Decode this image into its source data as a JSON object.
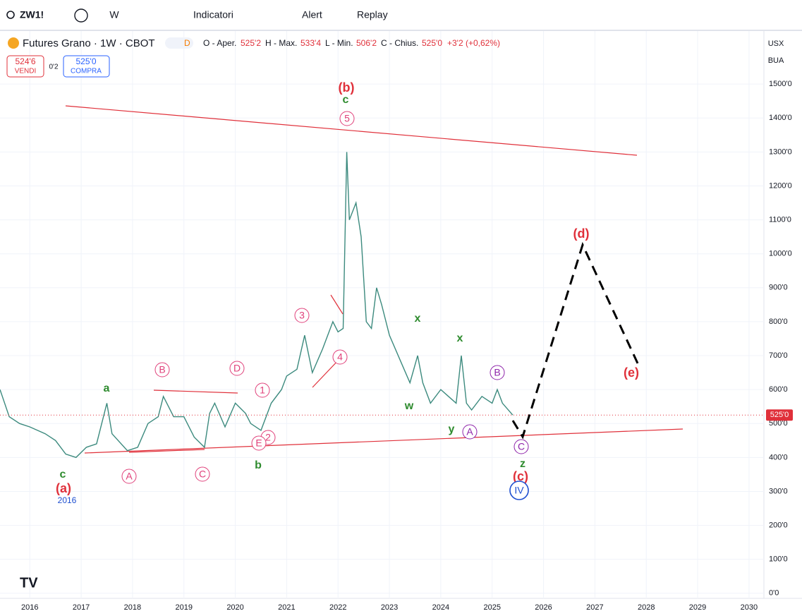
{
  "header": {
    "symbol": "ZW1!",
    "interval": "W",
    "indicators": "Indicatori",
    "alert": "Alert",
    "replay": "Replay"
  },
  "legend": {
    "name": "Futures Grano · 1W · CBOT",
    "badge": "D",
    "open_label": "O - Aper.",
    "open": "525'2",
    "high_label": "H - Max.",
    "high": "533'4",
    "low_label": "L - Min.",
    "low": "506'2",
    "close_label": "C - Chius.",
    "close": "525'0",
    "change": "+3'2 (+0,62%)",
    "sell": "524'6",
    "sell_label": "VENDI",
    "spread": "0'2",
    "buy": "525'0",
    "buy_label": "COMPRA",
    "currency": "USX",
    "unit": "BUA"
  },
  "chart_data": {
    "type": "line",
    "color": "#3c8a7e",
    "x": [
      2015.42,
      2015.6,
      2015.8,
      2016.0,
      2016.3,
      2016.5,
      2016.7,
      2016.9,
      2017.1,
      2017.3,
      2017.5,
      2017.6,
      2017.9,
      2018.1,
      2018.3,
      2018.5,
      2018.6,
      2018.8,
      2019.0,
      2019.2,
      2019.4,
      2019.5,
      2019.6,
      2019.8,
      2020.0,
      2020.2,
      2020.3,
      2020.5,
      2020.7,
      2020.9,
      2021.0,
      2021.2,
      2021.35,
      2021.5,
      2021.7,
      2021.9,
      2022.0,
      2022.1,
      2022.17,
      2022.22,
      2022.35,
      2022.45,
      2022.55,
      2022.65,
      2022.75,
      2022.85,
      2023.0,
      2023.2,
      2023.4,
      2023.55,
      2023.65,
      2023.8,
      2024.0,
      2024.15,
      2024.3,
      2024.4,
      2024.5,
      2024.6,
      2024.8,
      2025.0,
      2025.1,
      2025.2,
      2025.4
    ],
    "values": [
      600,
      520,
      500,
      490,
      470,
      450,
      410,
      400,
      430,
      440,
      560,
      470,
      420,
      430,
      500,
      520,
      580,
      520,
      520,
      460,
      430,
      530,
      560,
      490,
      560,
      530,
      500,
      480,
      560,
      600,
      640,
      660,
      760,
      650,
      720,
      800,
      770,
      780,
      1300,
      1100,
      1150,
      1050,
      800,
      780,
      900,
      850,
      760,
      690,
      620,
      700,
      620,
      560,
      600,
      580,
      560,
      700,
      560,
      540,
      580,
      560,
      600,
      560,
      525
    ],
    "xlim": [
      2015.42,
      2030.29
    ],
    "ylim": [
      -15,
      1598
    ],
    "xticks": [
      2016,
      2017,
      2018,
      2019,
      2020,
      2021,
      2022,
      2023,
      2024,
      2025,
      2026,
      2027,
      2028,
      2029,
      2030
    ],
    "yticks": [
      {
        "value": 0,
        "label": "0'0"
      },
      {
        "value": 100,
        "label": "100'0"
      },
      {
        "value": 200,
        "label": "200'0"
      },
      {
        "value": 300,
        "label": "300'0"
      },
      {
        "value": 400,
        "label": "400'0"
      },
      {
        "value": 500,
        "label": "500'0"
      },
      {
        "value": 600,
        "label": "600'0"
      },
      {
        "value": 700,
        "label": "700'0"
      },
      {
        "value": 800,
        "label": "800'0"
      },
      {
        "value": 900,
        "label": "900'0"
      },
      {
        "value": 1000,
        "label": "1000'0"
      },
      {
        "value": 1100,
        "label": "1100'0"
      },
      {
        "value": 1200,
        "label": "1200'0"
      },
      {
        "value": 1300,
        "label": "1300'0"
      },
      {
        "value": 1400,
        "label": "1400'0"
      },
      {
        "value": 1500,
        "label": "1500'0"
      }
    ],
    "grid": true,
    "last_price": {
      "value": 525,
      "label": "525'0"
    },
    "annotations": [
      {
        "text": "(b)",
        "color": "#e0303a",
        "circled": false
      },
      {
        "text": "c",
        "color": "#2e8b2e",
        "circled": false
      },
      {
        "text": "5",
        "color": "#e0407a",
        "circled": true
      },
      {
        "text": "(d)",
        "color": "#e0303a",
        "circled": false
      },
      {
        "text": "(e)",
        "color": "#e0303a",
        "circled": false
      },
      {
        "text": "x",
        "color": "#2e8b2e",
        "circled": false
      },
      {
        "text": "x",
        "color": "#2e8b2e",
        "circled": false
      },
      {
        "text": "B",
        "color": "#8e24aa",
        "circled": true
      },
      {
        "text": "w",
        "color": "#2e8b2e",
        "circled": false
      },
      {
        "text": "y",
        "color": "#2e8b2e",
        "circled": false
      },
      {
        "text": "A",
        "color": "#8e24aa",
        "circled": true
      },
      {
        "text": "C",
        "color": "#8e24aa",
        "circled": true
      },
      {
        "text": "z",
        "color": "#2e8b2e",
        "circled": false
      },
      {
        "text": "(c)",
        "color": "#e0303a",
        "circled": false
      },
      {
        "text": "IV",
        "color": "#1e4fd0",
        "circled": true
      },
      {
        "text": "3",
        "color": "#e0407a",
        "circled": true
      },
      {
        "text": "4",
        "color": "#e0407a",
        "circled": true
      },
      {
        "text": "1",
        "color": "#e0407a",
        "circled": true
      },
      {
        "text": "2",
        "color": "#e0407a",
        "circled": true
      },
      {
        "text": "E",
        "color": "#e0407a",
        "circled": true
      },
      {
        "text": "B",
        "color": "#e0407a",
        "circled": true
      },
      {
        "text": "D",
        "color": "#e0407a",
        "circled": true
      },
      {
        "text": "a",
        "color": "#2e8b2e",
        "circled": false
      },
      {
        "text": "b",
        "color": "#2e8b2e",
        "circled": false
      },
      {
        "text": "A",
        "color": "#e0407a",
        "circled": true
      },
      {
        "text": "C",
        "color": "#e0407a",
        "circled": true
      },
      {
        "text": "c",
        "color": "#2e8b2e",
        "circled": false
      },
      {
        "text": "(a)",
        "color": "#e0303a",
        "circled": false
      },
      {
        "text": "2016",
        "color": "#1e4fd0",
        "circled": false
      }
    ]
  }
}
